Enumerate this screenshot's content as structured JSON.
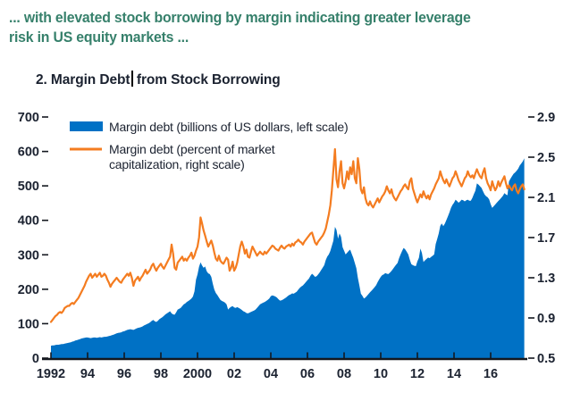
{
  "header": {
    "line1": "... with elevated stock borrowing by margin indicating greater leverage",
    "line2": "risk in US equity markets ...",
    "title_part1": "2. Margin Debt",
    "title_part2": "from Stock Borrowing",
    "heading_color": "#36806B",
    "text_color": "#1B2230"
  },
  "legend": {
    "item1": "Margin debt (billions of US dollars, left scale)",
    "item2_line1": "Margin debt (percent of market",
    "item2_line2": "capitalization, right scale)"
  },
  "chart_data": {
    "type": "area+line combo",
    "title": "2. Margin Debt from Stock Borrowing",
    "x_domain": [
      1992,
      2018
    ],
    "x_start": 1992.0,
    "x_step_months": 1,
    "x_tick_labels": [
      "1992",
      "94",
      "96",
      "98",
      "2000",
      "02",
      "04",
      "06",
      "08",
      "10",
      "12",
      "14",
      "16"
    ],
    "x_tick_values": [
      1992,
      1994,
      1996,
      1998,
      2000,
      2002,
      2004,
      2006,
      2008,
      2010,
      2012,
      2014,
      2016
    ],
    "left_axis": {
      "min": 0,
      "max": 700,
      "ticks": [
        0,
        100,
        200,
        300,
        400,
        500,
        600,
        700
      ],
      "label": "billions of US dollars"
    },
    "right_axis": {
      "min": 0.5,
      "max": 2.9,
      "ticks": [
        "0.5",
        "0.9",
        "1.3",
        "1.7",
        "2.1",
        "2.5",
        "2.9"
      ],
      "label": "percent of market capitalization"
    },
    "grid": false,
    "legend_position": "top-left inside plot",
    "axis_color": "#14181F",
    "series": [
      {
        "name": "Margin debt (billions of US dollars, left scale)",
        "type": "area",
        "axis": "left",
        "color": "#0071C5",
        "values": [
          36,
          37,
          37,
          38,
          39,
          39,
          40,
          41,
          41,
          42,
          43,
          44,
          45,
          46,
          48,
          49,
          51,
          52,
          54,
          55,
          57,
          58,
          59,
          60,
          60,
          59,
          58,
          59,
          60,
          60,
          59,
          60,
          61,
          60,
          61,
          62,
          62,
          63,
          64,
          65,
          67,
          68,
          70,
          72,
          73,
          74,
          75,
          77,
          78,
          80,
          82,
          83,
          84,
          83,
          82,
          84,
          86,
          88,
          89,
          90,
          92,
          95,
          97,
          99,
          101,
          104,
          108,
          111,
          107,
          105,
          108,
          113,
          116,
          119,
          123,
          127,
          130,
          133,
          136,
          130,
          127,
          126,
          133,
          141,
          143,
          146,
          151,
          156,
          159,
          163,
          166,
          169,
          173,
          179,
          194,
          228,
          243,
          265,
          278,
          269,
          262,
          266,
          252,
          246,
          244,
          236,
          216,
          199,
          189,
          183,
          176,
          169,
          166,
          164,
          161,
          156,
          141,
          146,
          149,
          151,
          147,
          146,
          148,
          146,
          143,
          140,
          136,
          134,
          131,
          130,
          132,
          134,
          136,
          138,
          141,
          146,
          151,
          156,
          159,
          161,
          163,
          166,
          169,
          173,
          180,
          182,
          181,
          179,
          176,
          171,
          167,
          168,
          170,
          173,
          176,
          180,
          183,
          185,
          188,
          187,
          190,
          193,
          199,
          204,
          208,
          211,
          216,
          221,
          226,
          231,
          239,
          245,
          241,
          236,
          238,
          243,
          249,
          256,
          263,
          270,
          285,
          295,
          301,
          311,
          326,
          341,
          381,
          372,
          347,
          362,
          352,
          322,
          312,
          301,
          306,
          311,
          315,
          303,
          291,
          276,
          261,
          233,
          211,
          187,
          181,
          173,
          176,
          181,
          186,
          191,
          196,
          201,
          206,
          212,
          221,
          229,
          236,
          241,
          243,
          247,
          245,
          244,
          248,
          253,
          259,
          265,
          271,
          276,
          290,
          301,
          311,
          320,
          316,
          309,
          301,
          286,
          273,
          270,
          268,
          267,
          281,
          291,
          318,
          305,
          279,
          284,
          288,
          292,
          290,
          294,
          297,
          301,
          331,
          346,
          362,
          384,
          391,
          383,
          391,
          401,
          412,
          423,
          436,
          445,
          451,
          460,
          456,
          451,
          455,
          460,
          458,
          455,
          458,
          460,
          457,
          457,
          465,
          476,
          486,
          507,
          504,
          499,
          494,
          484,
          475,
          470,
          467,
          461,
          447,
          436,
          441,
          446,
          451,
          456,
          461,
          466,
          471,
          479,
          475,
          473,
          513,
          521,
          528,
          535,
          539,
          544,
          550,
          559,
          565,
          571,
          580
        ]
      },
      {
        "name": "Margin debt (percent of market capitalization, right scale)",
        "type": "line",
        "axis": "right",
        "color": "#F47C20",
        "values": [
          0.86,
          0.88,
          0.9,
          0.92,
          0.93,
          0.95,
          0.96,
          0.95,
          0.97,
          1.0,
          1.01,
          1.02,
          1.02,
          1.04,
          1.05,
          1.04,
          1.06,
          1.08,
          1.1,
          1.13,
          1.16,
          1.19,
          1.22,
          1.26,
          1.29,
          1.32,
          1.34,
          1.3,
          1.32,
          1.34,
          1.31,
          1.33,
          1.35,
          1.31,
          1.32,
          1.34,
          1.32,
          1.28,
          1.25,
          1.21,
          1.24,
          1.26,
          1.28,
          1.3,
          1.28,
          1.26,
          1.25,
          1.28,
          1.3,
          1.32,
          1.34,
          1.32,
          1.35,
          1.3,
          1.22,
          1.27,
          1.29,
          1.31,
          1.27,
          1.3,
          1.32,
          1.35,
          1.38,
          1.34,
          1.36,
          1.38,
          1.42,
          1.44,
          1.4,
          1.37,
          1.4,
          1.42,
          1.44,
          1.41,
          1.39,
          1.42,
          1.45,
          1.48,
          1.51,
          1.63,
          1.54,
          1.4,
          1.38,
          1.45,
          1.47,
          1.49,
          1.51,
          1.47,
          1.49,
          1.47,
          1.5,
          1.52,
          1.55,
          1.49,
          1.52,
          1.57,
          1.61,
          1.7,
          1.9,
          1.84,
          1.77,
          1.72,
          1.66,
          1.61,
          1.64,
          1.67,
          1.62,
          1.55,
          1.49,
          1.47,
          1.52,
          1.47,
          1.45,
          1.44,
          1.47,
          1.5,
          1.48,
          1.37,
          1.4,
          1.46,
          1.37,
          1.4,
          1.45,
          1.53,
          1.61,
          1.66,
          1.61,
          1.54,
          1.58,
          1.51,
          1.5,
          1.56,
          1.61,
          1.58,
          1.55,
          1.52,
          1.54,
          1.56,
          1.54,
          1.53,
          1.56,
          1.54,
          1.56,
          1.58,
          1.6,
          1.62,
          1.61,
          1.59,
          1.58,
          1.57,
          1.6,
          1.62,
          1.6,
          1.59,
          1.61,
          1.62,
          1.63,
          1.61,
          1.64,
          1.62,
          1.65,
          1.66,
          1.68,
          1.66,
          1.65,
          1.63,
          1.66,
          1.68,
          1.7,
          1.72,
          1.74,
          1.75,
          1.7,
          1.65,
          1.63,
          1.66,
          1.68,
          1.7,
          1.72,
          1.75,
          1.79,
          1.86,
          1.93,
          2.02,
          2.17,
          2.37,
          2.58,
          2.28,
          2.2,
          2.36,
          2.46,
          2.24,
          2.19,
          2.26,
          2.36,
          2.28,
          2.4,
          2.33,
          2.46,
          2.29,
          2.24,
          2.49,
          2.38,
          2.18,
          2.14,
          2.2,
          2.09,
          2.04,
          2.02,
          2.06,
          2.02,
          2.0,
          2.03,
          2.06,
          2.09,
          2.05,
          2.08,
          2.11,
          2.13,
          2.16,
          2.21,
          2.17,
          2.14,
          2.18,
          2.12,
          2.09,
          2.07,
          2.1,
          2.13,
          2.16,
          2.18,
          2.21,
          2.23,
          2.2,
          2.18,
          2.26,
          2.29,
          2.19,
          2.14,
          2.09,
          2.05,
          2.09,
          2.13,
          2.1,
          2.16,
          2.12,
          2.09,
          2.12,
          2.08,
          2.13,
          2.16,
          2.19,
          2.23,
          2.26,
          2.29,
          2.36,
          2.31,
          2.27,
          2.24,
          2.28,
          2.24,
          2.21,
          2.25,
          2.29,
          2.31,
          2.36,
          2.32,
          2.27,
          2.24,
          2.21,
          2.25,
          2.29,
          2.31,
          2.36,
          2.32,
          2.3,
          2.32,
          2.29,
          2.34,
          2.38,
          2.34,
          2.31,
          2.29,
          2.35,
          2.39,
          2.29,
          2.24,
          2.21,
          2.17,
          2.26,
          2.21,
          2.17,
          2.2,
          2.26,
          2.21,
          2.25,
          2.28,
          2.31,
          2.24,
          2.19,
          2.22,
          2.19,
          2.17,
          2.21,
          2.23,
          2.17,
          2.14,
          2.18,
          2.21,
          2.23,
          2.18
        ]
      }
    ]
  }
}
